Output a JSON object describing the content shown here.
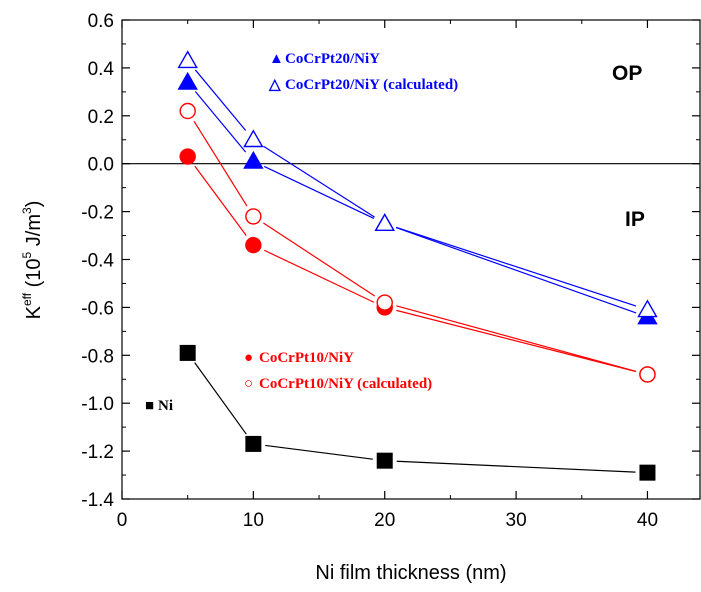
{
  "chart_data": {
    "type": "scatter",
    "xlabel": "Ni film thickness (nm)",
    "ylabel_parts": {
      "k": "K",
      "k_sup": "eff",
      "open": " (10",
      "exp": "5",
      "unit": " J/m",
      "unit_sup": "3",
      "close": ")"
    },
    "xlim": [
      0,
      44
    ],
    "ylim": [
      -1.4,
      0.6
    ],
    "x_ticks": [
      "0",
      "10",
      "20",
      "30",
      "40"
    ],
    "y_ticks": [
      "0.6",
      "0.4",
      "0.2",
      "0.0",
      "-0.2",
      "-0.4",
      "-0.6",
      "-0.8",
      "-1.0",
      "-1.2",
      "-1.4"
    ],
    "zero_line": 0.0,
    "regions": {
      "op": "OP",
      "ip": "IP"
    },
    "series": [
      {
        "name": "CoCrPt20/NiY",
        "marker": "triangle",
        "filled": true,
        "color": "#0000ff",
        "x": [
          5,
          10,
          20,
          40
        ],
        "y": [
          0.34,
          0.01,
          -0.25,
          -0.64
        ]
      },
      {
        "name": "CoCrPt20/NiY (calculated)",
        "marker": "triangle",
        "filled": false,
        "color": "#0000ff",
        "x": [
          5,
          10,
          20,
          40
        ],
        "y": [
          0.43,
          0.1,
          -0.25,
          -0.61
        ]
      },
      {
        "name": "CoCrPt10/NiY",
        "marker": "circle",
        "filled": true,
        "color": "#ff0000",
        "x": [
          5,
          10,
          20,
          40
        ],
        "y": [
          0.03,
          -0.34,
          -0.6,
          -0.88
        ]
      },
      {
        "name": "CoCrPt10/NiY (calculated)",
        "marker": "circle",
        "filled": false,
        "color": "#ff0000",
        "x": [
          5,
          10,
          20,
          40
        ],
        "y": [
          0.22,
          -0.22,
          -0.58,
          -0.88
        ]
      },
      {
        "name": "Ni",
        "marker": "square",
        "filled": true,
        "color": "#000000",
        "x": [
          5,
          10,
          20,
          40
        ],
        "y": [
          -0.79,
          -1.17,
          -1.24,
          -1.29
        ]
      }
    ],
    "legend": [
      {
        "symbol": "▲",
        "label": "CoCrPt20/NiY",
        "color": "#0000ff"
      },
      {
        "symbol": "△",
        "label": "CoCrPt20/NiY (calculated)",
        "color": "#0000ff"
      },
      {
        "symbol": "●",
        "label": "CoCrPt10/NiY",
        "color": "#ff0000"
      },
      {
        "symbol": "○",
        "label": "CoCrPt10/NiY (calculated)",
        "color": "#ff0000"
      },
      {
        "symbol": "■",
        "label": "Ni",
        "color": "#000000"
      }
    ]
  }
}
